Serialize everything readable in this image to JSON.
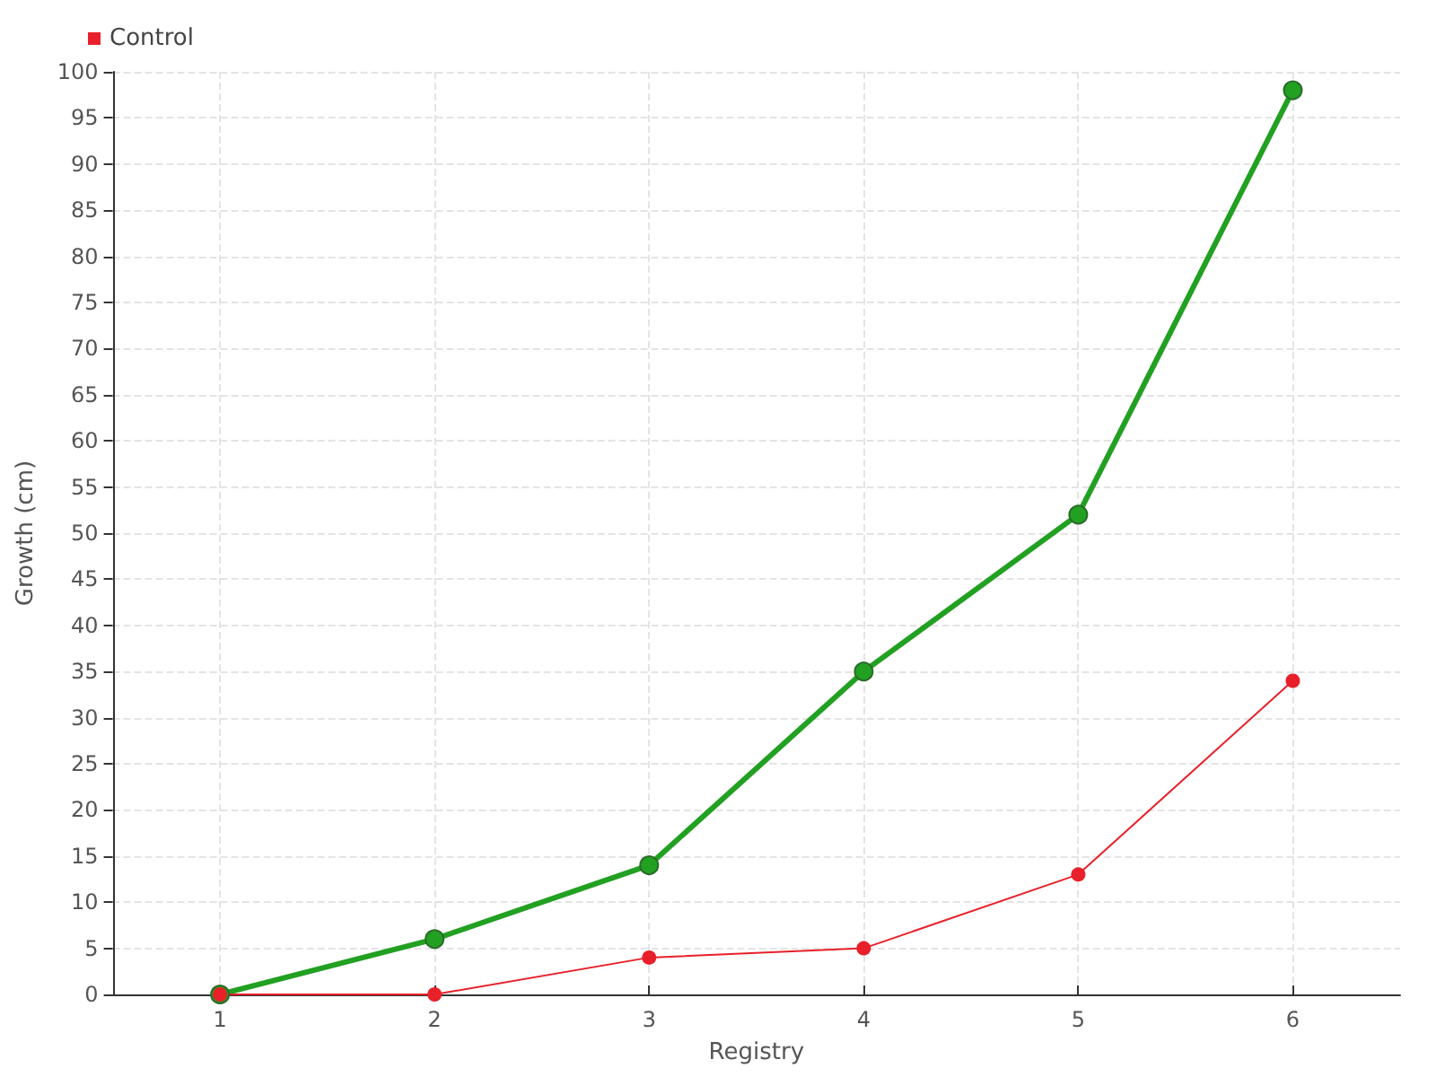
{
  "chart_data": {
    "type": "line",
    "xlabel": "Registry",
    "ylabel": "Growth (cm)",
    "x": [
      1,
      2,
      3,
      4,
      5,
      6
    ],
    "xlim": [
      0.5,
      6.5
    ],
    "xticks": [
      1,
      2,
      3,
      4,
      5,
      6
    ],
    "ylim": [
      0,
      100
    ],
    "yticks": [
      0,
      5,
      10,
      15,
      20,
      25,
      30,
      35,
      40,
      45,
      50,
      55,
      60,
      65,
      70,
      75,
      80,
      85,
      90,
      95,
      100
    ],
    "series": [
      {
        "color": "#22a022",
        "values": [
          0,
          6,
          14,
          35,
          52,
          98
        ]
      },
      {
        "name": "Control",
        "color": "#e8202a",
        "values": [
          0,
          0,
          4,
          5,
          13,
          34
        ]
      }
    ],
    "grid": true,
    "legend": "top left",
    "marker": "circle",
    "line_style": "solid"
  }
}
